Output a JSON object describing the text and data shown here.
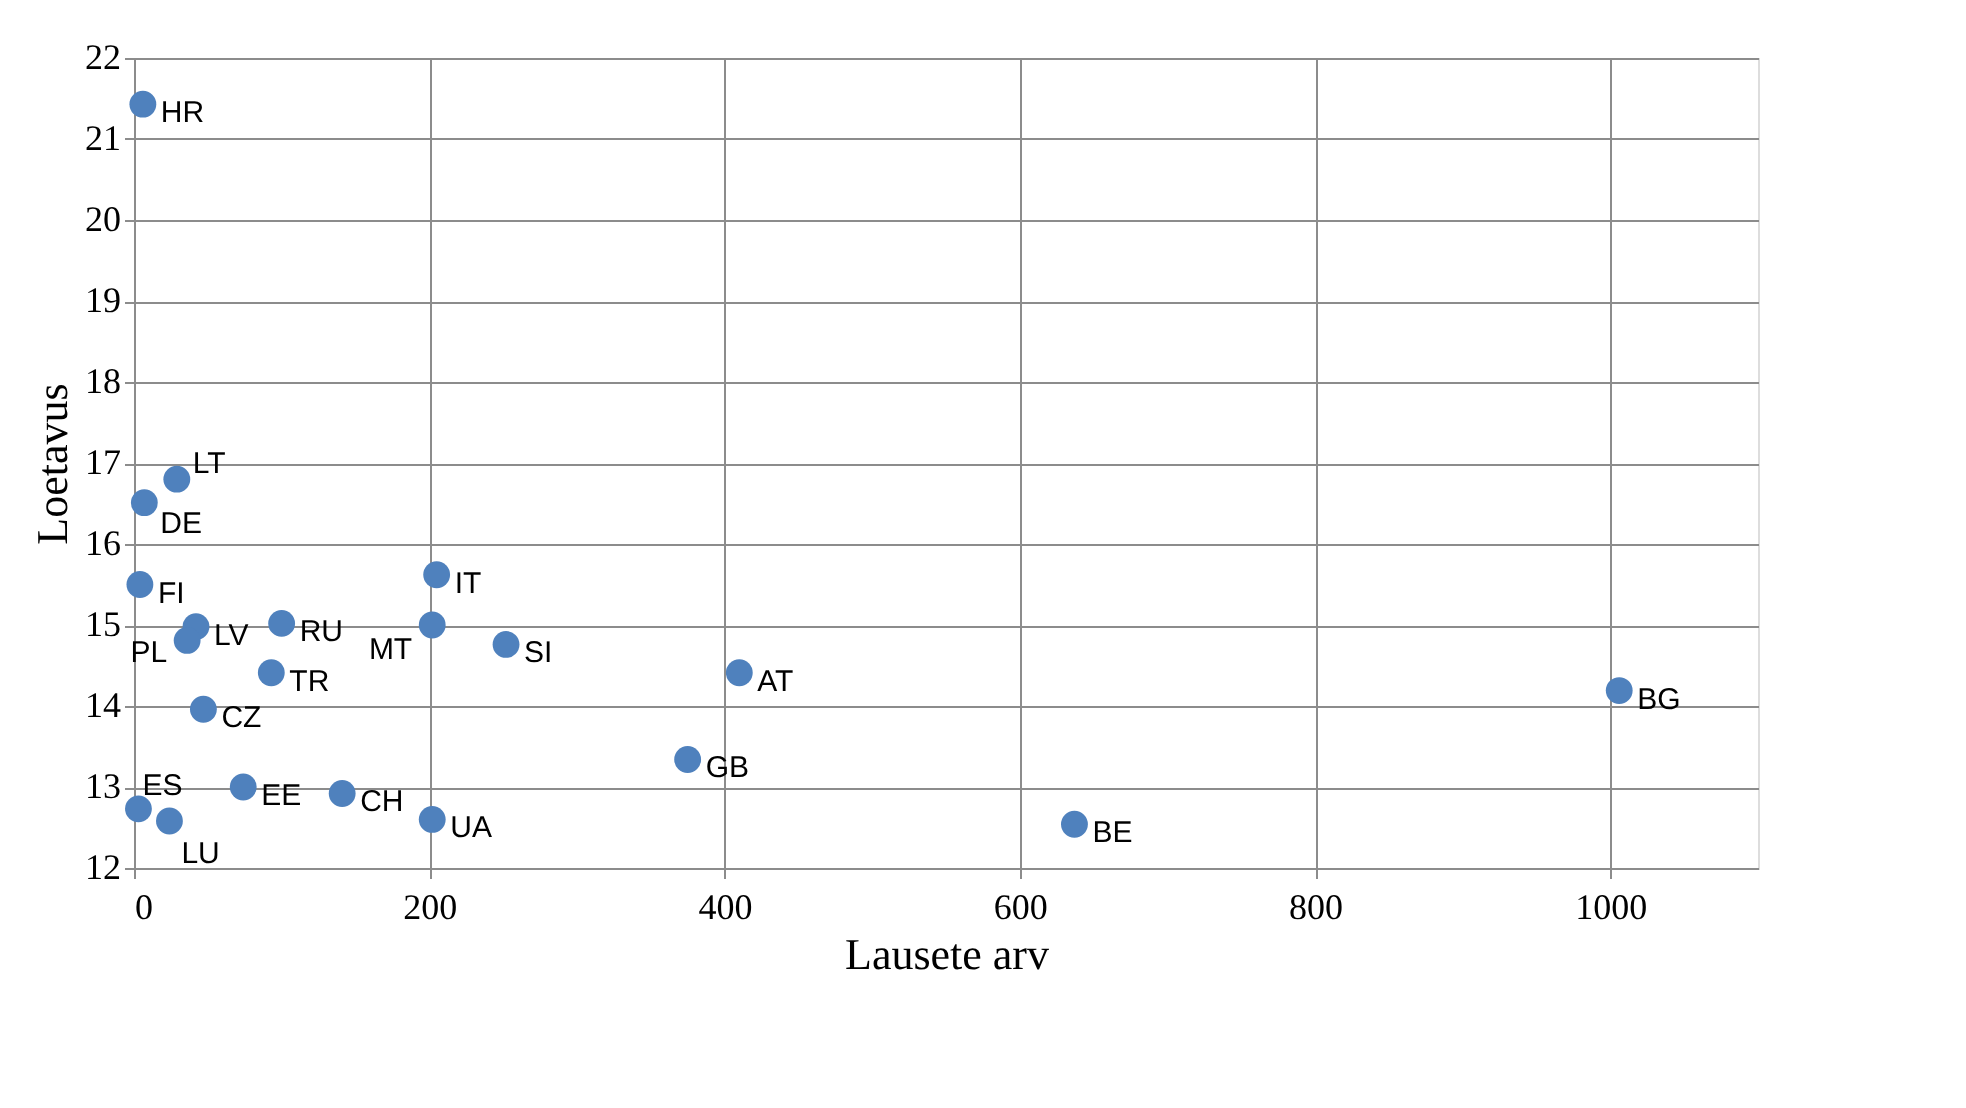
{
  "chart_data": {
    "type": "scatter",
    "xlabel": "Lausete arv",
    "ylabel": "Loetavus",
    "x": [
      6,
      29,
      7,
      4,
      42,
      36,
      100,
      93,
      47,
      205,
      202,
      252,
      74,
      141,
      202,
      3,
      24,
      375,
      410,
      1006,
      637
    ],
    "series": [
      {
        "color": "#4f81bd",
        "values": [
          21.43,
          16.8,
          16.51,
          15.5,
          14.98,
          14.81,
          15.02,
          14.41,
          13.96,
          15.62,
          15.0,
          14.76,
          13.0,
          12.92,
          12.6,
          12.73,
          12.58,
          13.34,
          14.41,
          14.19,
          12.54
        ]
      }
    ],
    "annotations": [
      {
        "text": "HR",
        "x": 6,
        "y": 21.43
      },
      {
        "text": "LT",
        "x": 29,
        "y": 16.8
      },
      {
        "text": "DE",
        "x": 7,
        "y": 16.51
      },
      {
        "text": "FI",
        "x": 4,
        "y": 15.5
      },
      {
        "text": "LV",
        "x": 42,
        "y": 14.98
      },
      {
        "text": "PL",
        "x": 36,
        "y": 14.81
      },
      {
        "text": "RU",
        "x": 100,
        "y": 15.02
      },
      {
        "text": "TR",
        "x": 93,
        "y": 14.41
      },
      {
        "text": "CZ",
        "x": 47,
        "y": 13.96
      },
      {
        "text": "IT",
        "x": 205,
        "y": 15.62
      },
      {
        "text": "MT",
        "x": 202,
        "y": 15.0
      },
      {
        "text": "SI",
        "x": 252,
        "y": 14.76
      },
      {
        "text": "EE",
        "x": 74,
        "y": 13.0
      },
      {
        "text": "CH",
        "x": 141,
        "y": 12.92
      },
      {
        "text": "UA",
        "x": 202,
        "y": 12.6
      },
      {
        "text": "ES",
        "x": 3,
        "y": 12.73
      },
      {
        "text": "LU",
        "x": 24,
        "y": 12.58
      },
      {
        "text": "GB",
        "x": 375,
        "y": 13.34
      },
      {
        "text": "AT",
        "x": 410,
        "y": 14.41
      },
      {
        "text": "BG",
        "x": 1006,
        "y": 14.19
      },
      {
        "text": "BE",
        "x": 637,
        "y": 12.54
      }
    ],
    "xlim": [
      0,
      1100
    ],
    "xticks": [
      0,
      200,
      400,
      600,
      800,
      1000
    ],
    "ylim": [
      12,
      22
    ],
    "yticks": [
      12,
      13,
      14,
      15,
      16,
      17,
      18,
      19,
      20,
      21,
      22
    ],
    "grid": true
  }
}
